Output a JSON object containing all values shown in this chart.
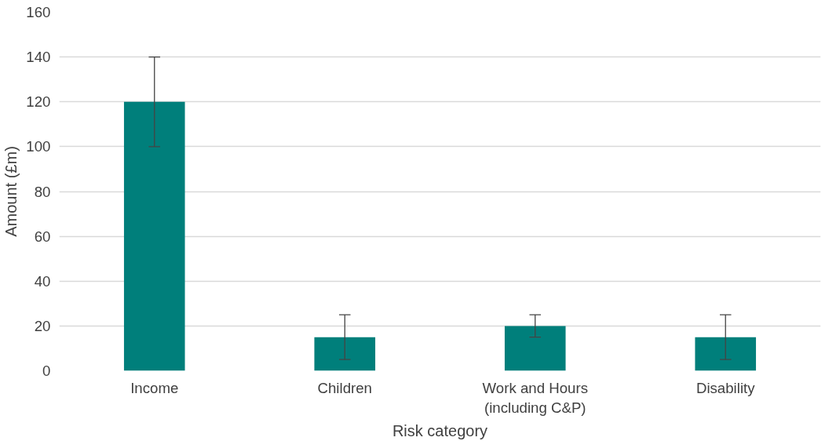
{
  "chart_data": {
    "type": "bar",
    "xlabel": "Risk category",
    "ylabel": "Amount (£m)",
    "categories": [
      "Income",
      "Children",
      "Work and Hours\n(including C&P)",
      "Disability"
    ],
    "values": [
      120,
      15,
      20,
      15
    ],
    "color": "#007f7b",
    "errors": [
      [
        100,
        140
      ],
      [
        5,
        25
      ],
      [
        15,
        25
      ],
      [
        5,
        25
      ]
    ],
    "ylim": [
      0,
      160
    ],
    "yticks": [
      0,
      20,
      40,
      60,
      80,
      100,
      120,
      140,
      160
    ],
    "grid": "y"
  }
}
